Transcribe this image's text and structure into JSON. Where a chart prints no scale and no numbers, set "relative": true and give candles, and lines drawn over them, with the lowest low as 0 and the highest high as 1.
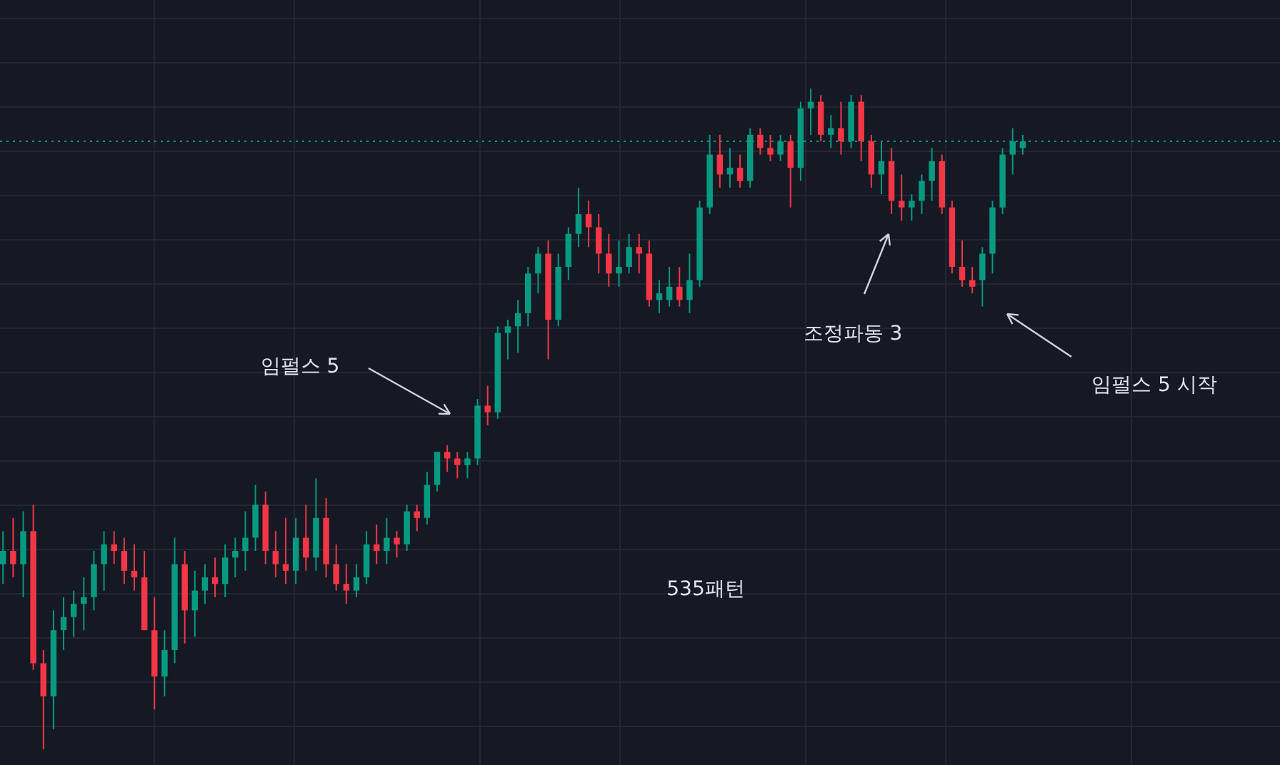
{
  "chart_data": {
    "type": "candlestick",
    "relative": true,
    "grid": true,
    "categories": [
      null,
      null,
      null,
      null,
      null,
      null,
      null,
      null,
      null,
      null,
      null,
      null,
      null,
      null,
      null,
      null,
      null,
      null,
      null,
      null,
      null,
      null,
      null,
      null,
      null,
      null,
      null,
      null,
      null,
      null,
      null,
      null,
      null,
      null,
      null,
      null,
      null,
      null,
      null,
      null,
      null,
      null,
      null,
      null,
      null,
      null,
      null,
      null,
      null,
      null,
      null,
      null,
      null,
      null,
      null,
      null,
      null,
      null,
      null,
      null,
      null,
      null,
      null,
      null,
      null,
      null,
      null,
      null,
      null,
      null,
      null,
      null,
      null,
      null,
      null,
      null,
      null,
      null,
      null,
      null,
      null,
      null,
      null,
      null,
      null,
      null,
      null,
      null,
      null,
      null,
      null,
      null,
      null,
      null,
      null,
      null,
      null,
      null,
      null,
      null,
      null,
      null
    ],
    "ohlc": [
      [
        0.28,
        0.33,
        0.25,
        0.3
      ],
      [
        0.3,
        0.35,
        0.26,
        0.28
      ],
      [
        0.28,
        0.36,
        0.23,
        0.33
      ],
      [
        0.33,
        0.37,
        0.12,
        0.13
      ],
      [
        0.13,
        0.15,
        0,
        0.08
      ],
      [
        0.08,
        0.21,
        0.03,
        0.18
      ],
      [
        0.18,
        0.23,
        0.15,
        0.2
      ],
      [
        0.2,
        0.24,
        0.17,
        0.22
      ],
      [
        0.22,
        0.26,
        0.18,
        0.23
      ],
      [
        0.23,
        0.3,
        0.21,
        0.28
      ],
      [
        0.28,
        0.33,
        0.24,
        0.31
      ],
      [
        0.31,
        0.33,
        0.28,
        0.3
      ],
      [
        0.3,
        0.32,
        0.25,
        0.27
      ],
      [
        0.27,
        0.31,
        0.24,
        0.26
      ],
      [
        0.26,
        0.3,
        0.18,
        0.18
      ],
      [
        0.18,
        0.23,
        0.06,
        0.11
      ],
      [
        0.11,
        0.18,
        0.08,
        0.15
      ],
      [
        0.15,
        0.32,
        0.13,
        0.28
      ],
      [
        0.28,
        0.3,
        0.16,
        0.21
      ],
      [
        0.21,
        0.27,
        0.17,
        0.24
      ],
      [
        0.24,
        0.28,
        0.22,
        0.26
      ],
      [
        0.26,
        0.29,
        0.23,
        0.25
      ],
      [
        0.25,
        0.31,
        0.23,
        0.29
      ],
      [
        0.29,
        0.32,
        0.26,
        0.3
      ],
      [
        0.3,
        0.36,
        0.27,
        0.32
      ],
      [
        0.32,
        0.4,
        0.3,
        0.37
      ],
      [
        0.37,
        0.39,
        0.28,
        0.3
      ],
      [
        0.3,
        0.33,
        0.26,
        0.28
      ],
      [
        0.28,
        0.35,
        0.25,
        0.27
      ],
      [
        0.27,
        0.35,
        0.25,
        0.32
      ],
      [
        0.32,
        0.37,
        0.27,
        0.29
      ],
      [
        0.29,
        0.41,
        0.27,
        0.35
      ],
      [
        0.35,
        0.38,
        0.26,
        0.28
      ],
      [
        0.28,
        0.31,
        0.24,
        0.25
      ],
      [
        0.25,
        0.28,
        0.22,
        0.24
      ],
      [
        0.24,
        0.28,
        0.23,
        0.26
      ],
      [
        0.26,
        0.33,
        0.25,
        0.31
      ],
      [
        0.31,
        0.34,
        0.28,
        0.3
      ],
      [
        0.3,
        0.35,
        0.28,
        0.32
      ],
      [
        0.32,
        0.33,
        0.29,
        0.31
      ],
      [
        0.31,
        0.37,
        0.3,
        0.36
      ],
      [
        0.36,
        0.37,
        0.33,
        0.35
      ],
      [
        0.35,
        0.42,
        0.34,
        0.4
      ],
      [
        0.4,
        0.45,
        0.39,
        0.45
      ],
      [
        0.45,
        0.46,
        0.42,
        0.44
      ],
      [
        0.44,
        0.45,
        0.41,
        0.43
      ],
      [
        0.43,
        0.45,
        0.41,
        0.44
      ],
      [
        0.44,
        0.53,
        0.43,
        0.52
      ],
      [
        0.52,
        0.55,
        0.49,
        0.51
      ],
      [
        0.51,
        0.64,
        0.5,
        0.63
      ],
      [
        0.63,
        0.65,
        0.59,
        0.64
      ],
      [
        0.64,
        0.68,
        0.6,
        0.66
      ],
      [
        0.66,
        0.73,
        0.64,
        0.72
      ],
      [
        0.72,
        0.76,
        0.69,
        0.75
      ],
      [
        0.75,
        0.77,
        0.59,
        0.65
      ],
      [
        0.65,
        0.75,
        0.64,
        0.73
      ],
      [
        0.73,
        0.79,
        0.71,
        0.78
      ],
      [
        0.78,
        0.85,
        0.76,
        0.81
      ],
      [
        0.81,
        0.83,
        0.76,
        0.79
      ],
      [
        0.79,
        0.81,
        0.72,
        0.75
      ],
      [
        0.75,
        0.78,
        0.7,
        0.72
      ],
      [
        0.72,
        0.77,
        0.7,
        0.73
      ],
      [
        0.73,
        0.78,
        0.72,
        0.76
      ],
      [
        0.76,
        0.78,
        0.72,
        0.75
      ],
      [
        0.75,
        0.77,
        0.67,
        0.68
      ],
      [
        0.68,
        0.71,
        0.66,
        0.69
      ],
      [
        0.68,
        0.73,
        0.67,
        0.7
      ],
      [
        0.7,
        0.73,
        0.67,
        0.68
      ],
      [
        0.68,
        0.75,
        0.66,
        0.71
      ],
      [
        0.71,
        0.83,
        0.7,
        0.82
      ],
      [
        0.82,
        0.93,
        0.81,
        0.9
      ],
      [
        0.9,
        0.93,
        0.85,
        0.87
      ],
      [
        0.87,
        0.91,
        0.85,
        0.88
      ],
      [
        0.88,
        0.9,
        0.85,
        0.86
      ],
      [
        0.86,
        0.94,
        0.85,
        0.93
      ],
      [
        0.93,
        0.94,
        0.9,
        0.91
      ],
      [
        0.91,
        0.93,
        0.89,
        0.9
      ],
      [
        0.9,
        0.93,
        0.89,
        0.92
      ],
      [
        0.92,
        0.93,
        0.82,
        0.88
      ],
      [
        0.88,
        0.98,
        0.86,
        0.97
      ],
      [
        0.97,
        1,
        0.93,
        0.98
      ],
      [
        0.98,
        0.99,
        0.92,
        0.93
      ],
      [
        0.93,
        0.96,
        0.91,
        0.94
      ],
      [
        0.94,
        0.98,
        0.9,
        0.92
      ],
      [
        0.92,
        0.99,
        0.91,
        0.98
      ],
      [
        0.98,
        0.99,
        0.89,
        0.92
      ],
      [
        0.92,
        0.93,
        0.85,
        0.87
      ],
      [
        0.87,
        0.92,
        0.84,
        0.89
      ],
      [
        0.89,
        0.91,
        0.81,
        0.83
      ],
      [
        0.83,
        0.87,
        0.8,
        0.82
      ],
      [
        0.82,
        0.84,
        0.8,
        0.83
      ],
      [
        0.83,
        0.87,
        0.81,
        0.86
      ],
      [
        0.86,
        0.91,
        0.83,
        0.89
      ],
      [
        0.89,
        0.9,
        0.81,
        0.82
      ],
      [
        0.82,
        0.83,
        0.72,
        0.73
      ],
      [
        0.73,
        0.77,
        0.7,
        0.71
      ],
      [
        0.71,
        0.73,
        0.69,
        0.7
      ],
      [
        0.71,
        0.76,
        0.67,
        0.75
      ],
      [
        0.75,
        0.83,
        0.72,
        0.82
      ],
      [
        0.82,
        0.91,
        0.81,
        0.9
      ],
      [
        0.9,
        0.94,
        0.87,
        0.92
      ],
      [
        0.91,
        0.93,
        0.9,
        0.92
      ]
    ],
    "colors": [
      "#089981",
      "#f23645",
      "#089981",
      "#f23645",
      "#f23645",
      "#089981",
      "#089981",
      "#089981",
      "#089981",
      "#089981",
      "#089981",
      "#f23645",
      "#f23645",
      "#f23645",
      "#f23645",
      "#f23645",
      "#089981",
      "#089981",
      "#f23645",
      "#089981",
      "#089981",
      "#f23645",
      "#089981",
      "#089981",
      "#089981",
      "#089981",
      "#f23645",
      "#f23645",
      "#f23645",
      "#089981",
      "#f23645",
      "#089981",
      "#f23645",
      "#f23645",
      "#f23645",
      "#089981",
      "#089981",
      "#f23645",
      "#089981",
      "#f23645",
      "#089981",
      "#f23645",
      "#089981",
      "#089981",
      "#f23645",
      "#f23645",
      "#089981",
      "#089981",
      "#f23645",
      "#089981",
      "#089981",
      "#089981",
      "#089981",
      "#089981",
      "#f23645",
      "#089981",
      "#089981",
      "#089981",
      "#f23645",
      "#f23645",
      "#f23645",
      "#089981",
      "#089981",
      "#f23645",
      "#f23645",
      "#089981",
      "#089981",
      "#f23645",
      "#089981",
      "#089981",
      "#089981",
      "#f23645",
      "#089981",
      "#f23645",
      "#089981",
      "#f23645",
      "#f23645",
      "#089981",
      "#f23645",
      "#089981",
      "#089981",
      "#f23645",
      "#089981",
      "#f23645",
      "#089981",
      "#f23645",
      "#f23645",
      "#089981",
      "#f23645",
      "#f23645",
      "#089981",
      "#089981",
      "#089981",
      "#f23645",
      "#f23645",
      "#f23645",
      "#f23645",
      "#089981",
      "#089981",
      "#089981",
      "#089981",
      "#089981"
    ],
    "ref_lines": [
      {
        "axis": "y",
        "value": 0.92,
        "color": "#089981",
        "line_style": "dotted"
      }
    ],
    "annotations": [
      "조정파동 3",
      "임펄스 5",
      "임펄스 5 시작",
      "535패턴"
    ]
  }
}
